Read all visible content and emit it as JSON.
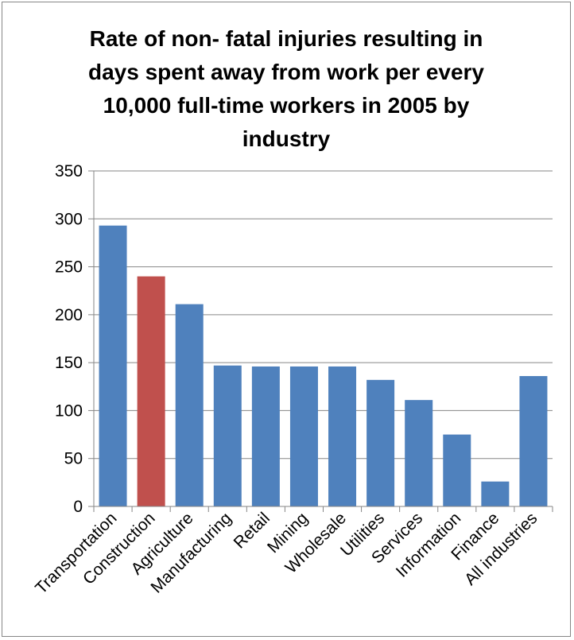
{
  "chart_data": {
    "type": "bar",
    "title_lines": [
      "Rate of non- fatal injuries resulting in",
      "days spent away from work per every",
      "10,000 full-time workers in 2005 by",
      "industry"
    ],
    "title": "Rate of non- fatal injuries resulting in days spent away from work per every 10,000 full-time workers in 2005 by industry",
    "xlabel": "",
    "ylabel": "",
    "ylim": [
      0,
      350
    ],
    "yticks": [
      0,
      50,
      100,
      150,
      200,
      250,
      300,
      350
    ],
    "grid": true,
    "legend": "none",
    "categories": [
      "Transportation",
      "Construction",
      "Agriculture",
      "Manufacturing",
      "Retail",
      "Mining",
      "Wholesale",
      "Utilities",
      "Services",
      "Information",
      "Finance",
      "All industries"
    ],
    "values": [
      293,
      240,
      211,
      147,
      146,
      146,
      146,
      132,
      111,
      75,
      26,
      136
    ],
    "colors": {
      "default": "#4f81bd",
      "highlight": "#c0504d",
      "highlight_category": "Construction",
      "grid": "#868686",
      "axis": "#868686"
    }
  }
}
